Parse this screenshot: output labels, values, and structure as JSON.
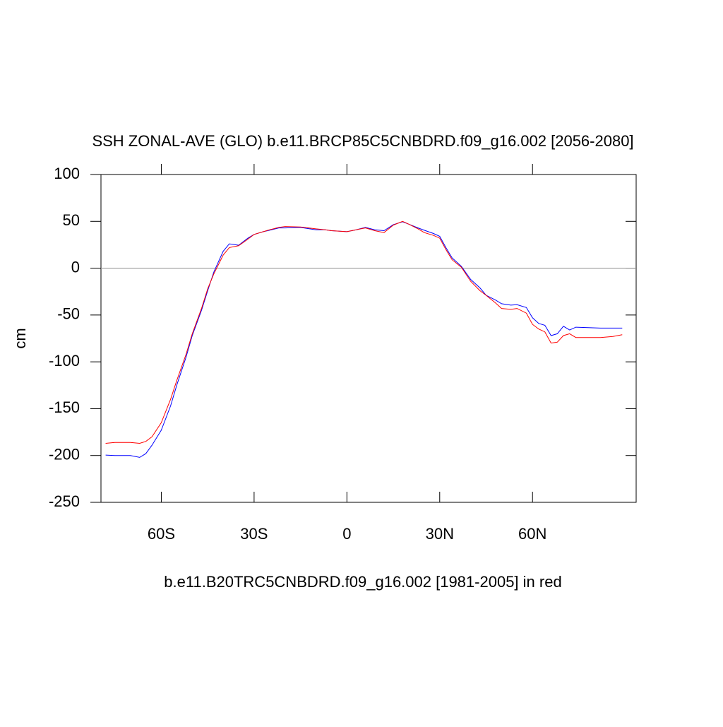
{
  "chart_data": {
    "type": "line",
    "title": "SSH ZONAL-AVE (GLO) b.e11.BRCP85C5CNBDRD.f09_g16.002 [2056-2080]",
    "y_label": "cm",
    "x_label": "b.e11.B20TRC5CNBDRD.f09_g16.002 [1981-2005] in red",
    "x": [
      -78,
      -75,
      -70,
      -67,
      -65,
      -63,
      -60,
      -57,
      -55,
      -52,
      -50,
      -47,
      -45,
      -43,
      -40,
      -38,
      -35,
      -32,
      -30,
      -27,
      -25,
      -22,
      -20,
      -15,
      -10,
      -7,
      -5,
      0,
      3,
      6,
      9,
      12,
      15,
      18,
      20,
      23,
      25,
      28,
      30,
      32,
      34,
      37,
      40,
      43,
      45,
      48,
      50,
      53,
      55,
      58,
      60,
      62,
      64,
      66,
      68,
      70,
      72,
      74,
      78,
      82,
      86,
      89
    ],
    "series": [
      {
        "color": "#0000ff",
        "values": [
          -199.5,
          -200,
          -200,
          -202,
          -198,
          -189,
          -173,
          -147,
          -125,
          -95,
          -72,
          -45,
          -24,
          -4,
          18,
          26,
          24.5,
          32,
          36,
          39,
          40.5,
          43,
          43,
          43.5,
          41,
          41,
          40,
          39,
          41,
          43.5,
          41,
          40,
          46.5,
          49.5,
          47,
          43,
          40.5,
          37,
          34,
          22,
          11,
          2,
          -12,
          -21,
          -29,
          -34,
          -38,
          -39.5,
          -39,
          -42,
          -53,
          -59,
          -61,
          -72,
          -70,
          -62,
          -66,
          -63,
          -63.5,
          -64,
          -64,
          -64
        ]
      },
      {
        "color": "#ff0000",
        "values": [
          -187,
          -186,
          -186,
          -187,
          -185,
          -180,
          -165,
          -140,
          -120,
          -92,
          -70,
          -43,
          -22,
          -6,
          14,
          22,
          24,
          31,
          36,
          39,
          41,
          43.5,
          44.5,
          44,
          42,
          41,
          40,
          39,
          41,
          43,
          40,
          38,
          46,
          50,
          47,
          42,
          38,
          35,
          32,
          20,
          9,
          1,
          -14,
          -24,
          -29,
          -37,
          -43,
          -44,
          -43,
          -48,
          -60,
          -65,
          -68,
          -80,
          -79,
          -72,
          -70,
          -74,
          -74,
          -74,
          -73,
          -71
        ]
      }
    ],
    "xlim": [
      -79.5,
      93.5
    ],
    "ylim": [
      -250,
      100
    ],
    "xticks": [
      {
        "value": -60,
        "label": "60S"
      },
      {
        "value": -30,
        "label": "30S"
      },
      0,
      {
        "value": 30,
        "label": "30N"
      },
      {
        "value": 60,
        "label": "60N"
      }
    ],
    "yticks": [
      -250,
      -200,
      -150,
      -100,
      -50,
      0,
      50,
      100
    ],
    "hline": 0,
    "hline_color": "#999999"
  }
}
